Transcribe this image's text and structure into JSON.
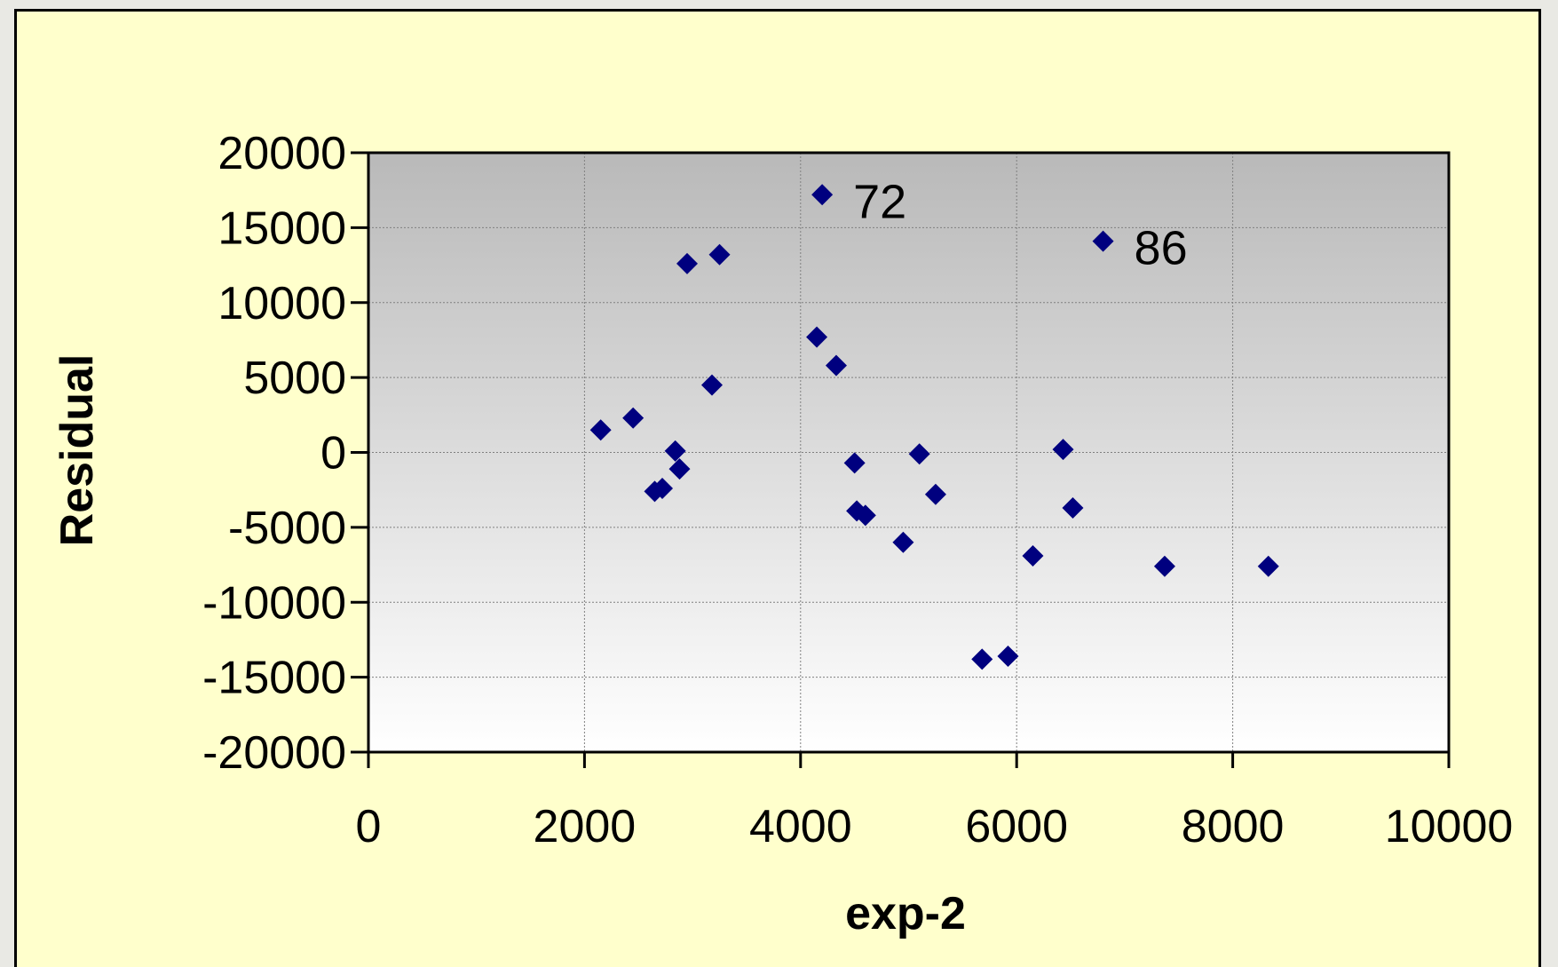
{
  "chart_data": {
    "type": "scatter",
    "title": "",
    "xlabel": "exp-2",
    "ylabel": "Residual",
    "xlim": [
      0,
      10000
    ],
    "ylim": [
      -20000,
      20000
    ],
    "x_ticks": [
      "0",
      "2000",
      "4000",
      "6000",
      "8000",
      "10000"
    ],
    "y_ticks": [
      "20000",
      "15000",
      "10000",
      "5000",
      "0",
      "-5000",
      "-10000",
      "-15000",
      "-20000"
    ],
    "grid": true,
    "marker": "diamond",
    "marker_color": "#00007f",
    "plot_background": "gray-to-white vertical gradient",
    "points": [
      {
        "x": 2150,
        "y": 1500
      },
      {
        "x": 2450,
        "y": 2300
      },
      {
        "x": 2650,
        "y": -2600
      },
      {
        "x": 2720,
        "y": -2400
      },
      {
        "x": 2840,
        "y": 100
      },
      {
        "x": 2880,
        "y": -1100
      },
      {
        "x": 2950,
        "y": 12600
      },
      {
        "x": 3180,
        "y": 4500
      },
      {
        "x": 3250,
        "y": 13200
      },
      {
        "x": 4150,
        "y": 7700
      },
      {
        "x": 4200,
        "y": 17200,
        "label": "72"
      },
      {
        "x": 4330,
        "y": 5800
      },
      {
        "x": 4500,
        "y": -700
      },
      {
        "x": 4520,
        "y": -3900
      },
      {
        "x": 4600,
        "y": -4200
      },
      {
        "x": 4950,
        "y": -6000
      },
      {
        "x": 5100,
        "y": -100
      },
      {
        "x": 5250,
        "y": -2800
      },
      {
        "x": 5680,
        "y": -13800
      },
      {
        "x": 5920,
        "y": -13600
      },
      {
        "x": 6150,
        "y": -6900
      },
      {
        "x": 6430,
        "y": 200
      },
      {
        "x": 6520,
        "y": -3700
      },
      {
        "x": 6800,
        "y": 14100,
        "label": "86"
      },
      {
        "x": 7370,
        "y": -7600
      },
      {
        "x": 8330,
        "y": -7600
      }
    ]
  }
}
